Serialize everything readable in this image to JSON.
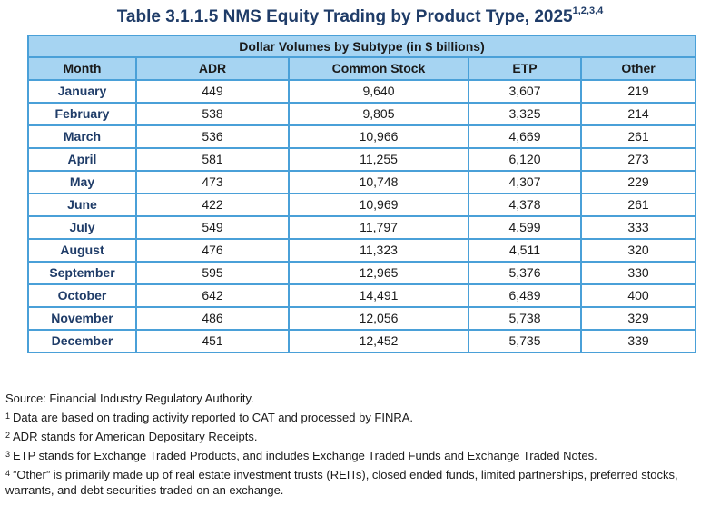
{
  "title": {
    "text": "Table 3.1.1.5 NMS Equity Trading by Product Type, 2025",
    "footnote_refs": "1,2,3,4"
  },
  "table": {
    "group_header": "Dollar Volumes by Subtype (in $ billions)",
    "columns": [
      "Month",
      "ADR",
      "Common Stock",
      "ETP",
      "Other"
    ],
    "rows": [
      {
        "month": "January",
        "adr": "449",
        "common_stock": "9,640",
        "etp": "3,607",
        "other": "219"
      },
      {
        "month": "February",
        "adr": "538",
        "common_stock": "9,805",
        "etp": "3,325",
        "other": "214"
      },
      {
        "month": "March",
        "adr": "536",
        "common_stock": "10,966",
        "etp": "4,669",
        "other": "261"
      },
      {
        "month": "April",
        "adr": "581",
        "common_stock": "11,255",
        "etp": "6,120",
        "other": "273"
      },
      {
        "month": "May",
        "adr": "473",
        "common_stock": "10,748",
        "etp": "4,307",
        "other": "229"
      },
      {
        "month": "June",
        "adr": "422",
        "common_stock": "10,969",
        "etp": "4,378",
        "other": "261"
      },
      {
        "month": "July",
        "adr": "549",
        "common_stock": "11,797",
        "etp": "4,599",
        "other": "333"
      },
      {
        "month": "August",
        "adr": "476",
        "common_stock": "11,323",
        "etp": "4,511",
        "other": "320"
      },
      {
        "month": "September",
        "adr": "595",
        "common_stock": "12,965",
        "etp": "5,376",
        "other": "330"
      },
      {
        "month": "October",
        "adr": "642",
        "common_stock": "14,491",
        "etp": "6,489",
        "other": "400"
      },
      {
        "month": "November",
        "adr": "486",
        "common_stock": "12,056",
        "etp": "5,738",
        "other": "329"
      },
      {
        "month": "December",
        "adr": "451",
        "common_stock": "12,452",
        "etp": "5,735",
        "other": "339"
      }
    ]
  },
  "notes": {
    "source": "Source: Financial Industry Regulatory Authority.",
    "footnotes": [
      {
        "marker": "1",
        "text": "Data are based on trading activity reported to CAT and processed by FINRA."
      },
      {
        "marker": "2",
        "text": "ADR stands for American Depositary Receipts."
      },
      {
        "marker": "3",
        "text": "ETP stands for Exchange Traded Products, and includes Exchange Traded Funds and Exchange Traded Notes."
      },
      {
        "marker": "4",
        "text": "”Other” is primarily made up of real estate investment trusts (REITs), closed ended funds, limited partnerships, preferred stocks, warrants, and debt securities traded on an exchange."
      }
    ]
  },
  "colors": {
    "title_text": "#1f3c68",
    "header_fill": "#a6d4f2",
    "border": "#4aa0d8",
    "month_text": "#1f3c68"
  }
}
